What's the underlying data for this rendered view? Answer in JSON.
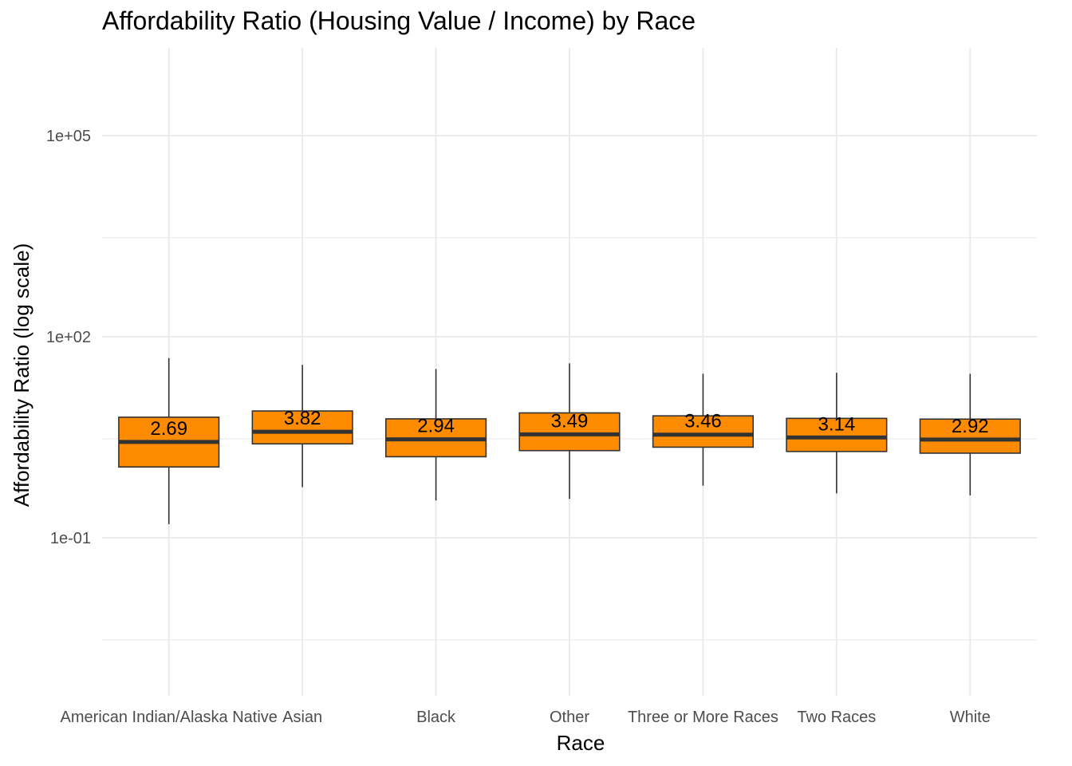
{
  "chart_data": {
    "type": "box",
    "title": "Affordability Ratio (Housing Value / Income) by Race",
    "xlabel": "Race",
    "ylabel": "Affordability Ratio (log scale)",
    "y_scale": "log10",
    "ylim": [
      0.001,
      10000000
    ],
    "y_ticks": [
      {
        "value": 0.1,
        "label": "1e-01"
      },
      {
        "value": 100,
        "label": "1e+02"
      },
      {
        "value": 100000,
        "label": "1e+05"
      }
    ],
    "y_minor_gridlines": [
      0.003,
      3,
      3000
    ],
    "grid": true,
    "box_color": "#FF8C00",
    "median_color": "#333333",
    "categories": [
      "American Indian/Alaska Native",
      "Asian",
      "Black",
      "Other",
      "Three or More Races",
      "Two Races",
      "White"
    ],
    "boxes": [
      {
        "category": "American Indian/Alaska Native",
        "whisker_low": 0.16,
        "q1": 1.14,
        "median": 2.69,
        "q3": 6.3,
        "whisker_high": 48,
        "label": "2.69"
      },
      {
        "category": "Asian",
        "whisker_low": 0.57,
        "q1": 2.52,
        "median": 3.82,
        "q3": 7.8,
        "whisker_high": 38,
        "label": "3.82"
      },
      {
        "category": "Black",
        "whisker_low": 0.36,
        "q1": 1.62,
        "median": 2.94,
        "q3": 5.95,
        "whisker_high": 33,
        "label": "2.94"
      },
      {
        "category": "Other",
        "whisker_low": 0.38,
        "q1": 2.0,
        "median": 3.49,
        "q3": 7.3,
        "whisker_high": 40,
        "label": "3.49"
      },
      {
        "category": "Three or More Races",
        "whisker_low": 0.6,
        "q1": 2.25,
        "median": 3.46,
        "q3": 6.6,
        "whisker_high": 28,
        "label": "3.46"
      },
      {
        "category": "Two Races",
        "whisker_low": 0.46,
        "q1": 1.94,
        "median": 3.14,
        "q3": 6.05,
        "whisker_high": 29,
        "label": "3.14"
      },
      {
        "category": "White",
        "whisker_low": 0.43,
        "q1": 1.83,
        "median": 2.92,
        "q3": 5.9,
        "whisker_high": 28,
        "label": "2.92"
      }
    ]
  }
}
